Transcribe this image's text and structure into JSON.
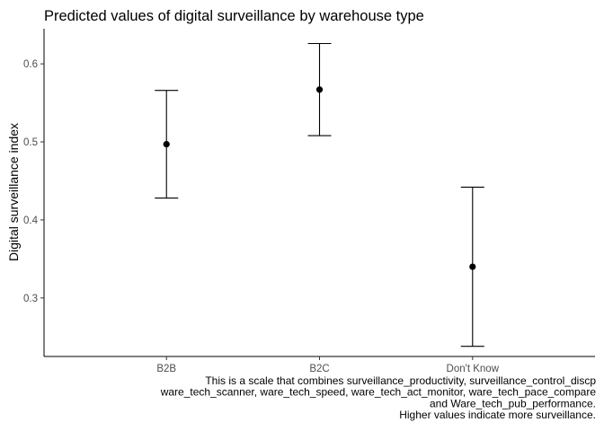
{
  "chart_data": {
    "type": "scatter",
    "title": "Predicted values of digital surveillance by warehouse type",
    "xlabel": "",
    "ylabel": "Digital surveillance index",
    "categories": [
      "B2B",
      "B2C",
      "Don't Know"
    ],
    "values": [
      0.497,
      0.567,
      0.34
    ],
    "lower": [
      0.428,
      0.508,
      0.238
    ],
    "upper": [
      0.566,
      0.626,
      0.442
    ],
    "yticks": [
      0.3,
      0.4,
      0.5,
      0.6
    ],
    "ytick_labels": [
      "0.3",
      "0.4",
      "0.5",
      "0.6"
    ],
    "ylim": [
      0.225,
      0.645
    ],
    "grid": false,
    "caption": [
      "This is a scale that combines surveillance_productivity, surveillance_control_discp",
      "ware_tech_scanner, ware_tech_speed, ware_tech_act_monitor, ware_tech_pace_compare",
      "and Ware_tech_pub_performance.",
      "Higher values indicate more surveillance."
    ]
  }
}
